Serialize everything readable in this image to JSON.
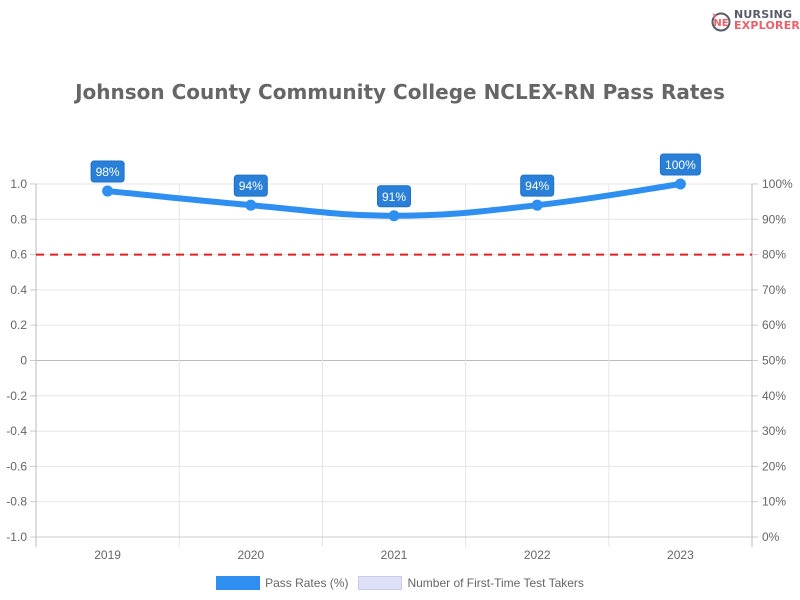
{
  "logo": {
    "line1": "NURSING",
    "line2": "EXPLORER"
  },
  "chart_data": {
    "type": "line",
    "title": "Johnson County Community College NCLEX-RN Pass Rates",
    "categories": [
      "2019",
      "2020",
      "2021",
      "2022",
      "2023"
    ],
    "series": [
      {
        "name": "Pass Rates (%)",
        "values": [
          98,
          94,
          91,
          94,
          100
        ],
        "labels": [
          "98%",
          "94%",
          "91%",
          "94%",
          "100%"
        ],
        "color": "#2f8ff0"
      },
      {
        "name": "Number of First-Time Test Takers",
        "values": [],
        "color": "#dde0f8"
      }
    ],
    "reference_line": {
      "value": 80,
      "color": "#e02020",
      "style": "dashed"
    },
    "left_axis": {
      "ticks": [
        "1.0",
        "0.8",
        "0.6",
        "0.4",
        "0.2",
        "0",
        "-0.2",
        "-0.4",
        "-0.6",
        "-0.8",
        "-1.0"
      ],
      "ylim": [
        -1.0,
        1.0
      ]
    },
    "right_axis": {
      "ticks": [
        "100%",
        "90%",
        "80%",
        "70%",
        "60%",
        "50%",
        "40%",
        "30%",
        "20%",
        "10%",
        "0%"
      ],
      "ylim": [
        0,
        100
      ]
    },
    "legend_position": "bottom",
    "grid": true
  },
  "legend": {
    "items": [
      {
        "label": "Pass Rates (%)"
      },
      {
        "label": "Number of First-Time Test Takers"
      }
    ]
  }
}
